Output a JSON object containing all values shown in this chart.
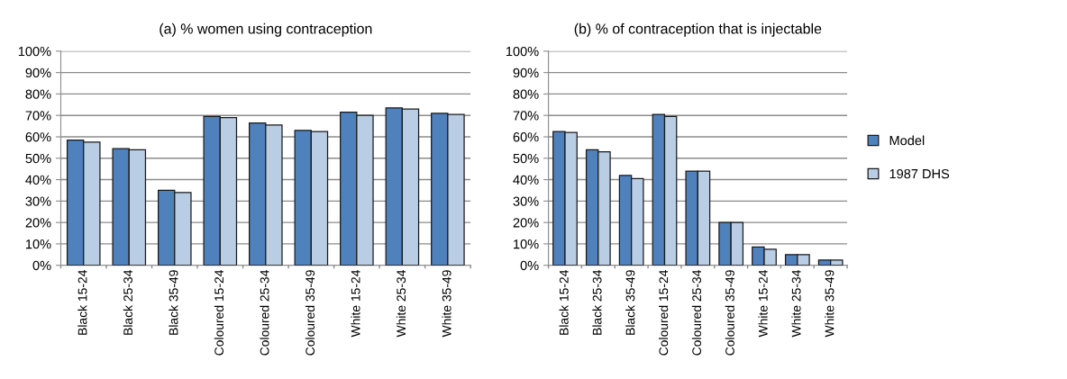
{
  "chart_data": [
    {
      "type": "bar",
      "title": "(a) % women using contraception",
      "categories": [
        "Black 15-24",
        "Black 25-34",
        "Black 35-49",
        "Coloured 15-24",
        "Coloured 25-34",
        "Coloured 35-49",
        "White 15-24",
        "White 25-34",
        "White 35-49"
      ],
      "series": [
        {
          "color": "#4f81bd",
          "values": [
            58.5,
            54.5,
            35,
            69.5,
            66.5,
            63,
            71.5,
            73.5,
            71
          ]
        },
        {
          "color": "#b9cde5",
          "values": [
            57.5,
            54,
            34,
            69,
            65.5,
            62.5,
            70,
            73,
            70.5
          ]
        }
      ],
      "ylim": [
        0,
        100
      ],
      "yticks": [
        {
          "value": 0,
          "label": "0%"
        },
        {
          "value": 10,
          "label": "10%"
        },
        {
          "value": 20,
          "label": "20%"
        },
        {
          "value": 30,
          "label": "30%"
        },
        {
          "value": 40,
          "label": "40%"
        },
        {
          "value": 50,
          "label": "50%"
        },
        {
          "value": 60,
          "label": "60%"
        },
        {
          "value": 70,
          "label": "70%"
        },
        {
          "value": 80,
          "label": "80%"
        },
        {
          "value": 90,
          "label": "90%"
        },
        {
          "value": 100,
          "label": "100%"
        }
      ],
      "grid": "y"
    },
    {
      "type": "bar",
      "title": "(b) % of contraception that is injectable",
      "categories": [
        "Black 15-24",
        "Black 25-34",
        "Black 35-49",
        "Coloured 15-24",
        "Coloured 25-34",
        "Coloured 35-49",
        "White 15-24",
        "White 25-34",
        "White 35-49"
      ],
      "series": [
        {
          "name": "Model",
          "color": "#4f81bd",
          "values": [
            62.5,
            54,
            42,
            70.5,
            44,
            20,
            8.5,
            5,
            2.5
          ]
        },
        {
          "name": "1987 DHS",
          "color": "#b9cde5",
          "values": [
            62,
            53,
            40.5,
            69.5,
            44,
            20,
            7.5,
            5,
            2.5
          ]
        }
      ],
      "ylim": [
        0,
        100
      ],
      "yticks": [
        {
          "value": 0,
          "label": "0%"
        },
        {
          "value": 10,
          "label": "10%"
        },
        {
          "value": 20,
          "label": "20%"
        },
        {
          "value": 30,
          "label": "30%"
        },
        {
          "value": 40,
          "label": "40%"
        },
        {
          "value": 50,
          "label": "50%"
        },
        {
          "value": 60,
          "label": "60%"
        },
        {
          "value": 70,
          "label": "70%"
        },
        {
          "value": 80,
          "label": "80%"
        },
        {
          "value": 90,
          "label": "90%"
        },
        {
          "value": 100,
          "label": "100%"
        }
      ],
      "grid": "y",
      "legend": "right"
    }
  ]
}
